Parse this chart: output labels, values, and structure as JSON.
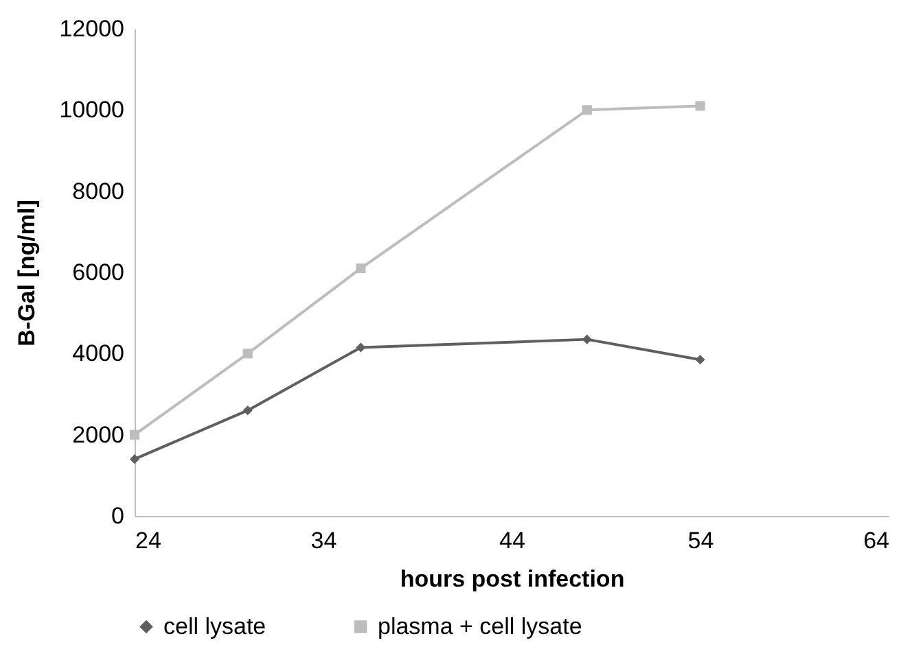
{
  "chart_data": {
    "type": "line",
    "xlabel": "hours post infection",
    "ylabel": "B-Gal [ng/ml]",
    "x": [
      24,
      30,
      36,
      48,
      54
    ],
    "series": [
      {
        "name": "cell lysate",
        "color": "#5f5f5f",
        "marker": "diamond",
        "values": [
          1400,
          2600,
          4150,
          4350,
          3850
        ]
      },
      {
        "name": "plasma + cell lysate",
        "color": "#bdbdbd",
        "marker": "square",
        "values": [
          2000,
          4000,
          6100,
          10000,
          10100
        ]
      }
    ],
    "xlim": [
      24,
      64
    ],
    "xticks": [
      24,
      34,
      44,
      54,
      64
    ],
    "ylim": [
      0,
      12000
    ],
    "yticks": [
      0,
      2000,
      4000,
      6000,
      8000,
      10000,
      12000
    ],
    "grid": false,
    "legend": "bottom"
  }
}
